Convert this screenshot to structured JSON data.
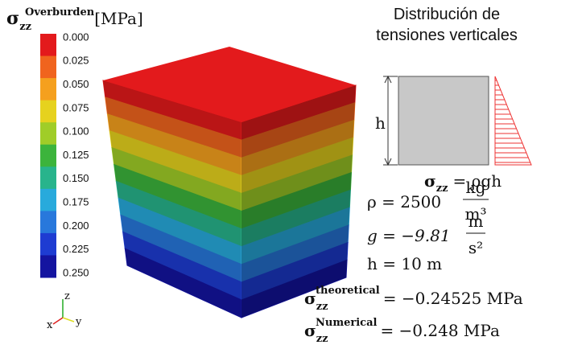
{
  "colorbar": {
    "symbol": "σ",
    "subscript": "zz",
    "superscript": "Overburden",
    "unit": "[MPa]",
    "labels": [
      "0.000",
      "0.025",
      "0.050",
      "0.075",
      "0.100",
      "0.125",
      "0.150",
      "0.175",
      "0.200",
      "0.225",
      "0.250"
    ],
    "colors": [
      "#e31a1c",
      "#f0641e",
      "#f5a01e",
      "#e6d21e",
      "#a0cd28",
      "#3cb43c",
      "#28b48c",
      "#28aadc",
      "#2878dc",
      "#1e3cd2",
      "#1414a0"
    ]
  },
  "diagram": {
    "title": [
      "Distribución de",
      "tensiones verticales"
    ],
    "height_label": "h",
    "stress": {
      "symbol": "σ",
      "subscript": "zz",
      "rhs": "= ρgh"
    }
  },
  "parameters": [
    {
      "lhs": "ρ = 2500",
      "numerator": "kg",
      "denominator": "m³"
    },
    {
      "lhs": "g = −9.81",
      "numerator": "m",
      "denominator": "s²"
    },
    {
      "lhs": "h = 10 m"
    }
  ],
  "results": [
    {
      "symbol": "σ",
      "subscript": "zz",
      "superscript": "theoretical",
      "rhs": "= −0.24525 MPa"
    },
    {
      "symbol": "σ",
      "subscript": "zz",
      "superscript": "Numerical",
      "rhs": "= −0.248 MPa"
    }
  ],
  "axes": {
    "z": "z",
    "x": "x",
    "y": "y"
  }
}
